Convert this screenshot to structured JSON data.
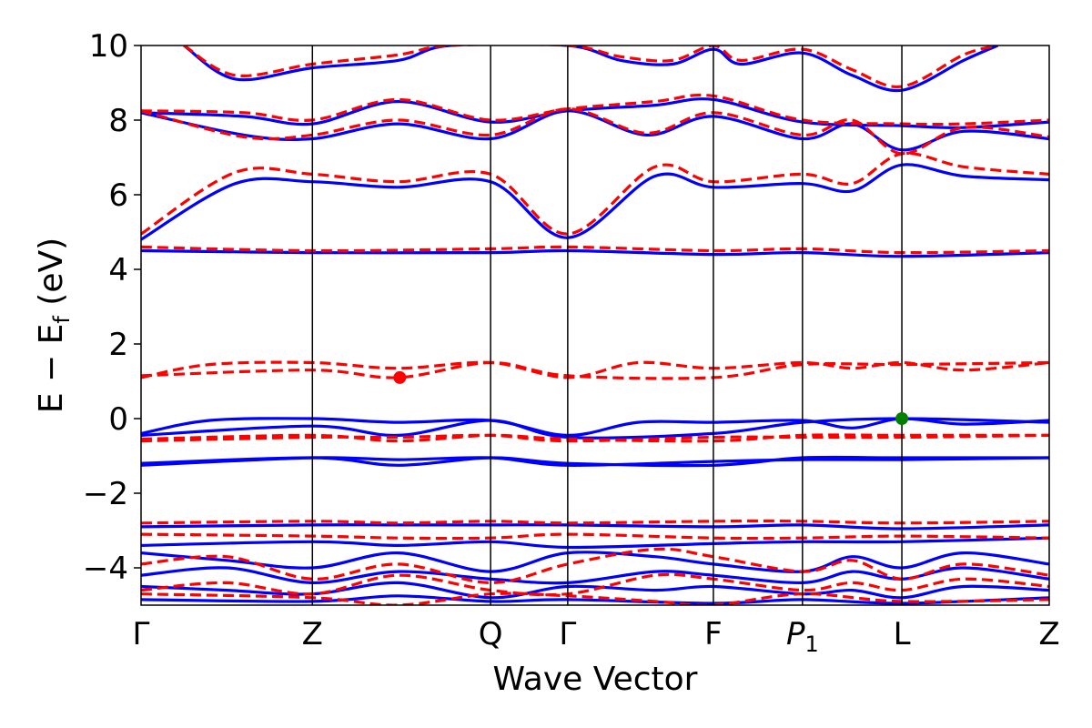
{
  "chart_data": {
    "type": "line",
    "xlabel": "Wave Vector",
    "ylabel": "E − E_f (eV)",
    "ylabel_parts": {
      "pre": "E − E",
      "sub": "f",
      "post": " (eV)"
    },
    "ylim": [
      -5,
      10
    ],
    "yticks": [
      -4,
      -2,
      0,
      2,
      4,
      6,
      8,
      10
    ],
    "ytick_labels": [
      "−4",
      "−2",
      "0",
      "2",
      "4",
      "6",
      "8",
      "10"
    ],
    "xlim": [
      0,
      10.6
    ],
    "kpoints": [
      {
        "label": "Γ",
        "x": 0
      },
      {
        "label": "Z",
        "x": 2.0
      },
      {
        "label": "Q",
        "x": 4.08
      },
      {
        "label": "Γ",
        "x": 4.98
      },
      {
        "label": "F",
        "x": 6.68
      },
      {
        "label": "P",
        "sub": "1",
        "x": 7.72
      },
      {
        "label": "L",
        "x": 8.88
      },
      {
        "label": "Z",
        "x": 10.6
      }
    ],
    "grid": false,
    "colors": {
      "spin_up": "#0000ff",
      "spin_down": "#ff0000",
      "vbm": "#008000",
      "cbm": "#ff0000"
    },
    "series": [
      {
        "style": "solid",
        "color": "#0000ff",
        "x": [
          0,
          1.1,
          2.0,
          3.0,
          4.08,
          4.98,
          6.0,
          6.68,
          7.72,
          8.3,
          8.88,
          9.6,
          10.6
        ],
        "y": [
          4.8,
          6.3,
          6.35,
          6.2,
          6.35,
          4.85,
          6.5,
          6.2,
          6.3,
          6.1,
          6.8,
          6.5,
          6.4
        ]
      },
      {
        "style": "dashed",
        "color": "#ff0000",
        "x": [
          0,
          1.1,
          2.0,
          3.0,
          4.08,
          4.98,
          6.0,
          6.68,
          7.72,
          8.3,
          8.88,
          9.6,
          10.6
        ],
        "y": [
          4.95,
          6.6,
          6.55,
          6.35,
          6.55,
          4.95,
          6.75,
          6.35,
          6.55,
          6.3,
          7.1,
          6.75,
          6.55
        ]
      },
      {
        "style": "solid",
        "color": "#0000ff",
        "x": [
          0,
          2.0,
          4.08,
          4.98,
          6.68,
          7.72,
          8.88,
          10.6
        ],
        "y": [
          4.5,
          4.45,
          4.45,
          4.5,
          4.4,
          4.45,
          4.35,
          4.45
        ]
      },
      {
        "style": "dashed",
        "color": "#ff0000",
        "x": [
          0,
          2.0,
          4.08,
          4.98,
          6.68,
          7.72,
          8.88,
          10.6
        ],
        "y": [
          4.6,
          4.5,
          4.55,
          4.6,
          4.5,
          4.55,
          4.45,
          4.5
        ]
      },
      {
        "style": "solid",
        "color": "#0000ff",
        "x": [
          0,
          1.2,
          2.0,
          3.0,
          4.08,
          4.98,
          5.9,
          6.68,
          7.72,
          8.3,
          8.88,
          9.6,
          10.6
        ],
        "y": [
          8.2,
          7.6,
          7.5,
          7.9,
          7.5,
          8.25,
          7.6,
          8.1,
          7.5,
          7.9,
          7.2,
          7.7,
          7.5
        ]
      },
      {
        "style": "dashed",
        "color": "#ff0000",
        "x": [
          0,
          1.2,
          2.0,
          3.0,
          4.08,
          4.98,
          5.9,
          6.68,
          7.72,
          8.3,
          8.88,
          9.6,
          10.6
        ],
        "y": [
          8.25,
          7.55,
          7.6,
          8.0,
          7.6,
          8.3,
          7.65,
          8.2,
          7.6,
          8.0,
          7.1,
          7.8,
          7.55
        ]
      },
      {
        "style": "solid",
        "color": "#0000ff",
        "x": [
          0,
          1.2,
          2.0,
          3.0,
          4.08,
          4.98,
          6.0,
          6.68,
          7.72,
          8.88,
          9.6,
          10.6
        ],
        "y": [
          8.2,
          8.1,
          7.9,
          8.5,
          7.95,
          8.25,
          8.4,
          8.55,
          7.95,
          7.85,
          7.8,
          7.95
        ]
      },
      {
        "style": "dashed",
        "color": "#ff0000",
        "x": [
          0,
          1.2,
          2.0,
          3.0,
          4.08,
          4.98,
          6.0,
          6.68,
          7.72,
          8.88,
          9.6,
          10.6
        ],
        "y": [
          8.25,
          8.2,
          8.0,
          8.55,
          8.0,
          8.3,
          8.5,
          8.65,
          8.0,
          7.9,
          7.9,
          8.0
        ]
      },
      {
        "style": "solid",
        "color": "#0000ff",
        "x": [
          0.5,
          1.1,
          2.0,
          3.0,
          3.6,
          4.98,
          5.6,
          6.2,
          6.68,
          7.0,
          7.72,
          8.3,
          8.88,
          9.6,
          10.0
        ],
        "y": [
          10.0,
          9.1,
          9.4,
          9.6,
          10.0,
          10.0,
          9.6,
          9.5,
          9.9,
          9.5,
          9.8,
          9.2,
          8.8,
          9.6,
          10.0
        ]
      },
      {
        "style": "dashed",
        "color": "#ff0000",
        "x": [
          0.5,
          1.1,
          2.0,
          3.0,
          3.6,
          4.98,
          5.6,
          6.2,
          6.68,
          7.0,
          7.72,
          8.3,
          8.88,
          9.6,
          10.0
        ],
        "y": [
          10.0,
          9.2,
          9.5,
          9.75,
          10.0,
          10.0,
          9.7,
          9.6,
          10.0,
          9.6,
          9.9,
          9.35,
          8.9,
          9.75,
          10.0
        ]
      },
      {
        "style": "solid",
        "color": "#0000ff",
        "x": [
          0,
          0.8,
          2.0,
          3.0,
          4.08,
          4.98,
          5.8,
          6.68,
          7.72,
          8.3,
          8.88,
          9.6,
          10.6
        ],
        "y": [
          -0.4,
          -0.05,
          0.0,
          -0.1,
          -0.05,
          -0.45,
          -0.1,
          -0.1,
          -0.05,
          -0.25,
          0.0,
          -0.15,
          -0.05
        ]
      },
      {
        "style": "solid",
        "color": "#0000ff",
        "x": [
          0,
          2.0,
          3.0,
          4.08,
          4.98,
          6.68,
          7.72,
          8.88,
          10.6
        ],
        "y": [
          -0.45,
          -0.2,
          -0.45,
          -0.05,
          -0.5,
          -0.4,
          -0.1,
          0.0,
          -0.1
        ]
      },
      {
        "style": "solid",
        "color": "#0000ff",
        "x": [
          0,
          2.0,
          3.0,
          4.08,
          4.98,
          6.68,
          7.72,
          8.88,
          10.6
        ],
        "y": [
          -1.2,
          -1.05,
          -1.25,
          -1.05,
          -1.2,
          -1.25,
          -1.05,
          -1.05,
          -1.05
        ]
      },
      {
        "style": "solid",
        "color": "#0000ff",
        "x": [
          0,
          2.0,
          3.0,
          4.08,
          4.98,
          6.68,
          7.72,
          8.88,
          10.6
        ],
        "y": [
          -1.25,
          -1.05,
          -1.1,
          -1.05,
          -1.25,
          -1.15,
          -1.1,
          -1.1,
          -1.05
        ]
      },
      {
        "style": "dashed",
        "color": "#ff0000",
        "x": [
          0,
          0.8,
          2.0,
          3.0,
          4.08,
          4.98,
          5.8,
          6.68,
          7.72,
          8.3,
          8.88,
          9.6,
          10.6
        ],
        "y": [
          1.1,
          1.45,
          1.5,
          1.35,
          1.5,
          1.1,
          1.5,
          1.35,
          1.5,
          1.35,
          1.5,
          1.3,
          1.5
        ]
      },
      {
        "style": "dashed",
        "color": "#ff0000",
        "x": [
          0,
          2.0,
          3.0,
          4.08,
          4.98,
          6.68,
          7.72,
          8.88,
          10.6
        ],
        "y": [
          1.15,
          1.3,
          1.1,
          1.5,
          1.15,
          1.1,
          1.45,
          1.45,
          1.5
        ]
      },
      {
        "style": "dashed",
        "color": "#ff0000",
        "x": [
          0,
          2.0,
          3.0,
          4.08,
          4.98,
          6.68,
          7.72,
          8.88,
          10.6
        ],
        "y": [
          -0.55,
          -0.45,
          -0.6,
          -0.45,
          -0.55,
          -0.6,
          -0.45,
          -0.45,
          -0.45
        ]
      },
      {
        "style": "dashed",
        "color": "#ff0000",
        "x": [
          0,
          2.0,
          3.0,
          4.08,
          4.98,
          6.68,
          7.72,
          8.88,
          10.6
        ],
        "y": [
          -0.6,
          -0.5,
          -0.5,
          -0.45,
          -0.6,
          -0.5,
          -0.5,
          -0.5,
          -0.45
        ]
      },
      {
        "style": "dashed",
        "color": "#ff0000",
        "x": [
          0,
          2.0,
          3.0,
          4.08,
          4.98,
          6.68,
          7.72,
          8.88,
          10.6
        ],
        "y": [
          -2.8,
          -2.75,
          -2.8,
          -2.75,
          -2.8,
          -2.75,
          -2.75,
          -2.8,
          -2.75
        ]
      },
      {
        "style": "dashed",
        "color": "#ff0000",
        "x": [
          0,
          2.0,
          3.0,
          4.08,
          4.98,
          6.68,
          7.72,
          8.88,
          10.6
        ],
        "y": [
          -3.1,
          -3.15,
          -3.2,
          -3.2,
          -3.1,
          -3.2,
          -3.2,
          -3.15,
          -3.2
        ]
      },
      {
        "style": "dashed",
        "color": "#ff0000",
        "x": [
          0,
          1.0,
          2.0,
          3.0,
          4.08,
          4.98,
          6.0,
          6.68,
          7.72,
          8.3,
          8.88,
          9.6,
          10.6
        ],
        "y": [
          -3.9,
          -3.7,
          -4.3,
          -3.9,
          -4.4,
          -3.9,
          -3.5,
          -3.7,
          -4.1,
          -3.8,
          -4.3,
          -3.9,
          -4.2
        ]
      },
      {
        "style": "dashed",
        "color": "#ff0000",
        "x": [
          0,
          1.0,
          2.0,
          3.0,
          4.08,
          4.98,
          6.0,
          6.68,
          7.72,
          8.3,
          8.88,
          9.6,
          10.6
        ],
        "y": [
          -4.6,
          -4.4,
          -4.7,
          -4.2,
          -4.6,
          -4.7,
          -4.2,
          -4.3,
          -4.6,
          -4.4,
          -4.6,
          -4.3,
          -4.5
        ]
      },
      {
        "style": "dashed",
        "color": "#ff0000",
        "x": [
          0,
          2.0,
          3.0,
          4.08,
          4.98,
          6.0,
          6.68,
          7.72,
          8.88,
          10.6
        ],
        "y": [
          -4.7,
          -4.8,
          -5.0,
          -4.7,
          -4.75,
          -4.9,
          -5.0,
          -4.7,
          -4.9,
          -4.85
        ]
      },
      {
        "style": "solid",
        "color": "#0000ff",
        "x": [
          0,
          2.0,
          3.0,
          4.08,
          4.98,
          6.68,
          7.72,
          8.88,
          10.6
        ],
        "y": [
          -2.9,
          -2.85,
          -2.85,
          -2.85,
          -2.85,
          -2.9,
          -2.85,
          -2.95,
          -2.85
        ]
      },
      {
        "style": "solid",
        "color": "#0000ff",
        "x": [
          0,
          2.0,
          3.0,
          4.08,
          4.98,
          6.68,
          7.72,
          8.88,
          10.6
        ],
        "y": [
          -3.4,
          -3.3,
          -3.4,
          -3.3,
          -3.45,
          -3.35,
          -3.3,
          -3.3,
          -3.2
        ]
      },
      {
        "style": "solid",
        "color": "#0000ff",
        "x": [
          0,
          1.0,
          2.0,
          3.0,
          4.08,
          4.98,
          6.0,
          6.68,
          7.72,
          8.3,
          8.88,
          9.6,
          10.6
        ],
        "y": [
          -3.6,
          -3.8,
          -4.0,
          -3.6,
          -4.1,
          -3.6,
          -3.7,
          -3.9,
          -4.1,
          -3.7,
          -4.0,
          -3.6,
          -3.9
        ]
      },
      {
        "style": "solid",
        "color": "#0000ff",
        "x": [
          0,
          1.0,
          2.0,
          3.0,
          4.08,
          4.98,
          6.0,
          6.68,
          7.72,
          8.3,
          8.88,
          9.6,
          10.6
        ],
        "y": [
          -4.2,
          -4.0,
          -4.4,
          -4.1,
          -4.3,
          -4.4,
          -4.1,
          -4.2,
          -4.4,
          -4.1,
          -4.3,
          -4.0,
          -4.3
        ]
      },
      {
        "style": "solid",
        "color": "#0000ff",
        "x": [
          0,
          1.0,
          2.0,
          3.0,
          4.08,
          4.98,
          6.0,
          6.68,
          7.72,
          8.3,
          8.88,
          9.6,
          10.6
        ],
        "y": [
          -4.5,
          -4.6,
          -4.7,
          -4.4,
          -4.8,
          -4.5,
          -4.6,
          -4.5,
          -4.7,
          -4.6,
          -4.8,
          -4.5,
          -4.6
        ]
      },
      {
        "style": "solid",
        "color": "#0000ff",
        "x": [
          0,
          2.0,
          3.0,
          4.08,
          4.98,
          6.68,
          7.72,
          8.88,
          10.6
        ],
        "y": [
          -4.85,
          -4.9,
          -4.75,
          -4.9,
          -4.85,
          -4.95,
          -4.85,
          -4.95,
          -4.8
        ]
      }
    ],
    "markers": [
      {
        "name": "cbm",
        "x": 3.02,
        "y": 1.1,
        "color": "#ff0000"
      },
      {
        "name": "vbm",
        "x": 8.88,
        "y": 0.0,
        "color": "#008000"
      }
    ]
  }
}
